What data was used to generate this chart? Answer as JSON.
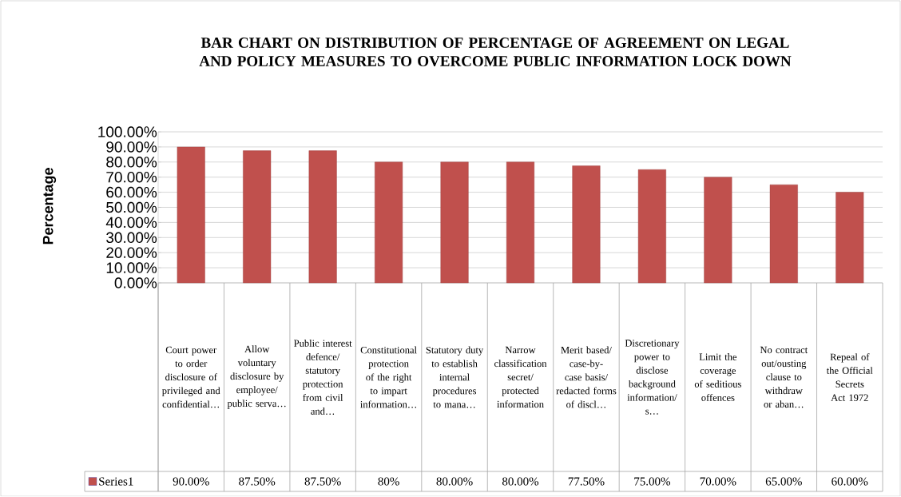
{
  "chart_data": {
    "type": "bar",
    "title": "BAR CHART ON DISTRIBUTION OF PERCENTAGE OF AGREEMENT ON LEGAL AND POLICY MEASURES TO OVERCOME PUBLIC INFORMATION LOCK DOWN",
    "ylabel": "Percentage",
    "categories": [
      "Court power to order disclosure of privileged and confidential…",
      "Allow voluntary disclosure by employee/public serva…",
      "Public interest defence/statutory protection from civil and…",
      "Constitutional protection of the right to impart information…",
      "Statutory duty to establish internal procedures to mana…",
      "Narrow classification secret/protected information",
      "Merit based/case-by-case basis/redacted forms of discl…",
      "Discretionary power to disclose background information/s…",
      "Limit the coverage of seditious offences",
      "No contract out/ousting clause to withdraw or aban…",
      "Repeal of the Official Secrets Act 1972"
    ],
    "series": [
      {
        "name": "Series1",
        "color": "#c0504d",
        "values": [
          90,
          87.5,
          87.5,
          80,
          80,
          80,
          77.5,
          75,
          70,
          65,
          60
        ],
        "value_labels": [
          "90.00%",
          "87.50%",
          "87.50%",
          "80%",
          "80.00%",
          "80.00%",
          "77.50%",
          "75.00%",
          "70.00%",
          "65.00%",
          "60.00%"
        ]
      }
    ],
    "ylim": [
      0,
      100
    ],
    "yticks": [
      {
        "value": 0,
        "label": "0.00%"
      },
      {
        "value": 10,
        "label": "10.00%"
      },
      {
        "value": 20,
        "label": "20.00%"
      },
      {
        "value": 30,
        "label": "30.00%"
      },
      {
        "value": 40,
        "label": "40.00%"
      },
      {
        "value": 50,
        "label": "50.00%"
      },
      {
        "value": 60,
        "label": "60.00%"
      },
      {
        "value": 70,
        "label": "70.00%"
      },
      {
        "value": 80,
        "label": "80.00%"
      },
      {
        "value": 90,
        "label": "90.00%"
      },
      {
        "value": 100,
        "label": "100.00%"
      }
    ],
    "grid": "y",
    "legend": "bottom"
  }
}
